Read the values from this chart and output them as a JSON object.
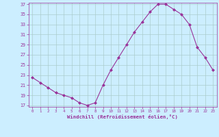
{
  "x": [
    0,
    1,
    2,
    3,
    4,
    5,
    6,
    7,
    8,
    9,
    10,
    11,
    12,
    13,
    14,
    15,
    16,
    17,
    18,
    19,
    20,
    21,
    22,
    23
  ],
  "y": [
    22.5,
    21.5,
    20.5,
    19.5,
    19.0,
    18.5,
    17.5,
    17.0,
    17.5,
    21.0,
    24.0,
    26.5,
    29.0,
    31.5,
    33.5,
    35.5,
    37.0,
    37.0,
    36.0,
    35.0,
    33.0,
    28.5,
    26.5,
    24.0
  ],
  "line_color": "#993399",
  "marker_color": "#993399",
  "bg_color": "#cceeff",
  "grid_color": "#aacccc",
  "xlabel": "Windchill (Refroidissement éolien,°C)",
  "xlabel_color": "#993399",
  "tick_color": "#993399",
  "ylim": [
    17,
    37
  ],
  "xlim": [
    -0.5,
    23.5
  ],
  "yticks": [
    17,
    19,
    21,
    23,
    25,
    27,
    29,
    31,
    33,
    35,
    37
  ],
  "xticks": [
    0,
    1,
    2,
    3,
    4,
    5,
    6,
    7,
    8,
    9,
    10,
    11,
    12,
    13,
    14,
    15,
    16,
    17,
    18,
    19,
    20,
    21,
    22,
    23
  ],
  "xtick_labels": [
    "0",
    "1",
    "2",
    "3",
    "4",
    "5",
    "6",
    "7",
    "8",
    "9",
    "10",
    "11",
    "12",
    "13",
    "14",
    "15",
    "16",
    "17",
    "18",
    "19",
    "20",
    "21",
    "22",
    "23"
  ]
}
